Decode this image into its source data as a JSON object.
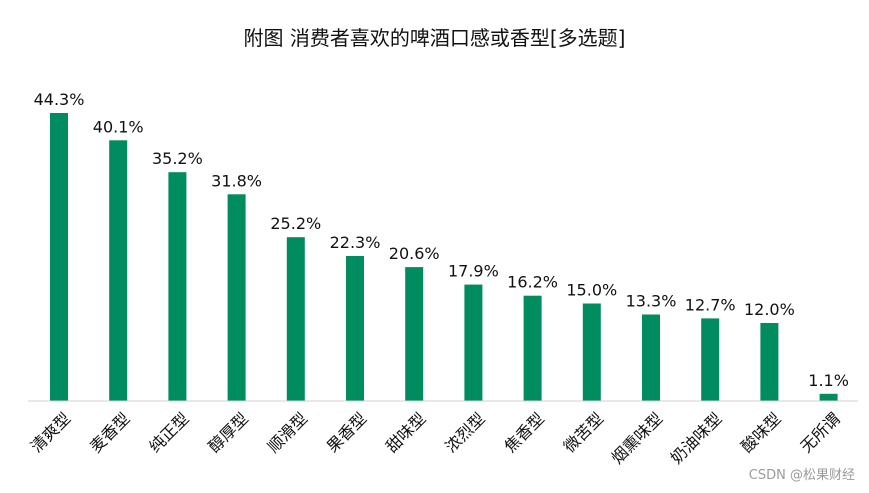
{
  "chart_data": {
    "type": "bar",
    "title": "附图 消费者喜欢的啤酒口感或香型[多选题]",
    "categories": [
      "清爽型",
      "麦香型",
      "纯正型",
      "醇厚型",
      "顺滑型",
      "果香型",
      "甜味型",
      "浓烈型",
      "焦香型",
      "微苦型",
      "烟熏味型",
      "奶油味型",
      "酸味型",
      "无所谓"
    ],
    "values": [
      44.3,
      40.1,
      35.2,
      31.8,
      25.2,
      22.3,
      20.6,
      17.9,
      16.2,
      15.0,
      13.3,
      12.7,
      12.0,
      1.1
    ],
    "value_labels": [
      "44.3%",
      "40.1%",
      "35.2%",
      "31.8%",
      "25.2%",
      "22.3%",
      "20.6%",
      "17.9%",
      "16.2%",
      "15.0%",
      "13.3%",
      "12.7%",
      "12.0%",
      "1.1%"
    ],
    "ylim": [
      0,
      50
    ],
    "grid": false,
    "bar_color": "#008c5e"
  },
  "watermark": "CSDN @松果财经"
}
